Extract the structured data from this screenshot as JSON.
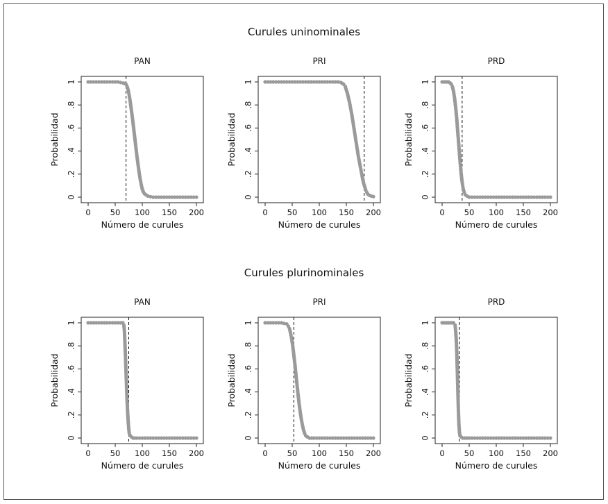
{
  "colors": {
    "marker": "#9a9a9a",
    "axis": "#222222",
    "cutoff_line": "#111111",
    "background": "#ffffff"
  },
  "sections": [
    {
      "id": "uninominal",
      "title": "Curules uninominales"
    },
    {
      "id": "plurinominal",
      "title": "Curules plurinominales"
    }
  ],
  "chart_data": [
    {
      "type": "scatter",
      "section": "Curules uninominales",
      "title": "PAN",
      "xlabel": "Número de curules",
      "ylabel": "Probabilidad",
      "xlim": [
        0,
        200
      ],
      "ylim": [
        0,
        1
      ],
      "xticks": [
        "0",
        "50",
        "100",
        "150",
        "200"
      ],
      "yticks": [
        "0",
        ".2",
        ".4",
        ".6",
        ".8",
        "1"
      ],
      "cutoff_x": 70,
      "points": [
        [
          0,
          1
        ],
        [
          5,
          1
        ],
        [
          10,
          1
        ],
        [
          15,
          1
        ],
        [
          20,
          1
        ],
        [
          25,
          1
        ],
        [
          30,
          1
        ],
        [
          35,
          1
        ],
        [
          40,
          1
        ],
        [
          45,
          1
        ],
        [
          50,
          1
        ],
        [
          55,
          1
        ],
        [
          60,
          0.995
        ],
        [
          65,
          0.99
        ],
        [
          68,
          0.985
        ],
        [
          70,
          0.98
        ],
        [
          72,
          0.96
        ],
        [
          74,
          0.93
        ],
        [
          76,
          0.88
        ],
        [
          78,
          0.82
        ],
        [
          80,
          0.75
        ],
        [
          82,
          0.68
        ],
        [
          84,
          0.6
        ],
        [
          86,
          0.52
        ],
        [
          88,
          0.44
        ],
        [
          90,
          0.36
        ],
        [
          92,
          0.29
        ],
        [
          94,
          0.22
        ],
        [
          96,
          0.16
        ],
        [
          98,
          0.11
        ],
        [
          100,
          0.07
        ],
        [
          102,
          0.045
        ],
        [
          104,
          0.03
        ],
        [
          107,
          0.02
        ],
        [
          110,
          0.01
        ],
        [
          115,
          0.005
        ],
        [
          120,
          0
        ],
        [
          125,
          0
        ],
        [
          130,
          0
        ],
        [
          135,
          0
        ],
        [
          140,
          0
        ],
        [
          145,
          0
        ],
        [
          150,
          0
        ],
        [
          155,
          0
        ],
        [
          160,
          0
        ],
        [
          165,
          0
        ],
        [
          170,
          0
        ],
        [
          175,
          0
        ],
        [
          180,
          0
        ],
        [
          185,
          0
        ],
        [
          190,
          0
        ],
        [
          195,
          0
        ],
        [
          200,
          0
        ]
      ]
    },
    {
      "type": "scatter",
      "section": "Curules uninominales",
      "title": "PRI",
      "xlabel": "Número de curules",
      "ylabel": "Probabilidad",
      "xlim": [
        0,
        200
      ],
      "ylim": [
        0,
        1
      ],
      "xticks": [
        "0",
        "50",
        "100",
        "150",
        "200"
      ],
      "yticks": [
        "0",
        ".2",
        ".4",
        ".6",
        ".8",
        "1"
      ],
      "cutoff_x": 183,
      "points": [
        [
          0,
          1
        ],
        [
          5,
          1
        ],
        [
          10,
          1
        ],
        [
          15,
          1
        ],
        [
          20,
          1
        ],
        [
          25,
          1
        ],
        [
          30,
          1
        ],
        [
          35,
          1
        ],
        [
          40,
          1
        ],
        [
          45,
          1
        ],
        [
          50,
          1
        ],
        [
          55,
          1
        ],
        [
          60,
          1
        ],
        [
          65,
          1
        ],
        [
          70,
          1
        ],
        [
          75,
          1
        ],
        [
          80,
          1
        ],
        [
          85,
          1
        ],
        [
          90,
          1
        ],
        [
          95,
          1
        ],
        [
          100,
          1
        ],
        [
          105,
          1
        ],
        [
          110,
          1
        ],
        [
          115,
          1
        ],
        [
          120,
          1
        ],
        [
          125,
          1
        ],
        [
          130,
          1
        ],
        [
          135,
          1
        ],
        [
          140,
          0.995
        ],
        [
          145,
          0.98
        ],
        [
          148,
          0.96
        ],
        [
          150,
          0.93
        ],
        [
          152,
          0.9
        ],
        [
          154,
          0.86
        ],
        [
          156,
          0.82
        ],
        [
          158,
          0.77
        ],
        [
          160,
          0.72
        ],
        [
          162,
          0.66
        ],
        [
          164,
          0.6
        ],
        [
          166,
          0.54
        ],
        [
          168,
          0.48
        ],
        [
          170,
          0.42
        ],
        [
          172,
          0.36
        ],
        [
          174,
          0.31
        ],
        [
          176,
          0.26
        ],
        [
          178,
          0.21
        ],
        [
          180,
          0.16
        ],
        [
          182,
          0.12
        ],
        [
          184,
          0.09
        ],
        [
          186,
          0.06
        ],
        [
          188,
          0.04
        ],
        [
          190,
          0.025
        ],
        [
          193,
          0.015
        ],
        [
          196,
          0.01
        ],
        [
          200,
          0.005
        ]
      ]
    },
    {
      "type": "scatter",
      "section": "Curules uninominales",
      "title": "PRD",
      "xlabel": "Número de curules",
      "ylabel": "Probabilidad",
      "xlim": [
        0,
        200
      ],
      "ylim": [
        0,
        1
      ],
      "xticks": [
        "0",
        "50",
        "100",
        "150",
        "200"
      ],
      "yticks": [
        "0",
        ".2",
        ".4",
        ".6",
        ".8",
        "1"
      ],
      "cutoff_x": 37,
      "points": [
        [
          0,
          1
        ],
        [
          3,
          1
        ],
        [
          6,
          1
        ],
        [
          9,
          1
        ],
        [
          12,
          1
        ],
        [
          15,
          0.99
        ],
        [
          17,
          0.98
        ],
        [
          19,
          0.96
        ],
        [
          21,
          0.92
        ],
        [
          23,
          0.86
        ],
        [
          25,
          0.78
        ],
        [
          27,
          0.68
        ],
        [
          29,
          0.56
        ],
        [
          31,
          0.44
        ],
        [
          33,
          0.32
        ],
        [
          35,
          0.21
        ],
        [
          37,
          0.13
        ],
        [
          39,
          0.07
        ],
        [
          41,
          0.04
        ],
        [
          43,
          0.02
        ],
        [
          46,
          0.01
        ],
        [
          50,
          0
        ],
        [
          55,
          0
        ],
        [
          60,
          0
        ],
        [
          65,
          0
        ],
        [
          70,
          0
        ],
        [
          75,
          0
        ],
        [
          80,
          0
        ],
        [
          85,
          0
        ],
        [
          90,
          0
        ],
        [
          95,
          0
        ],
        [
          100,
          0
        ],
        [
          105,
          0
        ],
        [
          110,
          0
        ],
        [
          115,
          0
        ],
        [
          120,
          0
        ],
        [
          125,
          0
        ],
        [
          130,
          0
        ],
        [
          135,
          0
        ],
        [
          140,
          0
        ],
        [
          145,
          0
        ],
        [
          150,
          0
        ],
        [
          155,
          0
        ],
        [
          160,
          0
        ],
        [
          165,
          0
        ],
        [
          170,
          0
        ],
        [
          175,
          0
        ],
        [
          180,
          0
        ],
        [
          185,
          0
        ],
        [
          190,
          0
        ],
        [
          195,
          0
        ],
        [
          200,
          0
        ]
      ]
    },
    {
      "type": "scatter",
      "section": "Curules plurinominales",
      "title": "PAN",
      "xlabel": "Número de curules",
      "ylabel": "Probabilidad",
      "xlim": [
        0,
        200
      ],
      "ylim": [
        0,
        1
      ],
      "xticks": [
        "0",
        "50",
        "100",
        "150",
        "200"
      ],
      "yticks": [
        "0",
        ".2",
        ".4",
        ".6",
        ".8",
        "1"
      ],
      "cutoff_x": 75,
      "points": [
        [
          0,
          1
        ],
        [
          5,
          1
        ],
        [
          10,
          1
        ],
        [
          15,
          1
        ],
        [
          20,
          1
        ],
        [
          25,
          1
        ],
        [
          30,
          1
        ],
        [
          35,
          1
        ],
        [
          40,
          1
        ],
        [
          45,
          1
        ],
        [
          50,
          1
        ],
        [
          55,
          1
        ],
        [
          60,
          1
        ],
        [
          64,
          1
        ],
        [
          66,
          0.98
        ],
        [
          67,
          0.93
        ],
        [
          68,
          0.82
        ],
        [
          69,
          0.7
        ],
        [
          70,
          0.57
        ],
        [
          71,
          0.44
        ],
        [
          72,
          0.32
        ],
        [
          73,
          0.22
        ],
        [
          74,
          0.14
        ],
        [
          75,
          0.08
        ],
        [
          76,
          0.04
        ],
        [
          78,
          0.02
        ],
        [
          80,
          0.01
        ],
        [
          83,
          0
        ],
        [
          86,
          0
        ],
        [
          90,
          0
        ],
        [
          95,
          0
        ],
        [
          100,
          0
        ],
        [
          105,
          0
        ],
        [
          110,
          0
        ],
        [
          115,
          0
        ],
        [
          120,
          0
        ],
        [
          125,
          0
        ],
        [
          130,
          0
        ],
        [
          135,
          0
        ],
        [
          140,
          0
        ],
        [
          145,
          0
        ],
        [
          150,
          0
        ],
        [
          155,
          0
        ],
        [
          160,
          0
        ],
        [
          165,
          0
        ],
        [
          170,
          0
        ],
        [
          175,
          0
        ],
        [
          180,
          0
        ],
        [
          185,
          0
        ],
        [
          190,
          0
        ],
        [
          195,
          0
        ],
        [
          200,
          0
        ]
      ]
    },
    {
      "type": "scatter",
      "section": "Curules plurinominales",
      "title": "PRI",
      "xlabel": "Número de curules",
      "ylabel": "Probabilidad",
      "xlim": [
        0,
        200
      ],
      "ylim": [
        0,
        1
      ],
      "xticks": [
        "0",
        "50",
        "100",
        "150",
        "200"
      ],
      "yticks": [
        "0",
        ".2",
        ".4",
        ".6",
        ".8",
        "1"
      ],
      "cutoff_x": 53,
      "points": [
        [
          0,
          1
        ],
        [
          5,
          1
        ],
        [
          10,
          1
        ],
        [
          15,
          1
        ],
        [
          20,
          1
        ],
        [
          25,
          1
        ],
        [
          30,
          1
        ],
        [
          35,
          0.995
        ],
        [
          40,
          0.99
        ],
        [
          43,
          0.97
        ],
        [
          45,
          0.95
        ],
        [
          47,
          0.91
        ],
        [
          49,
          0.86
        ],
        [
          51,
          0.8
        ],
        [
          53,
          0.72
        ],
        [
          55,
          0.64
        ],
        [
          57,
          0.55
        ],
        [
          59,
          0.46
        ],
        [
          61,
          0.37
        ],
        [
          63,
          0.29
        ],
        [
          65,
          0.22
        ],
        [
          67,
          0.16
        ],
        [
          69,
          0.11
        ],
        [
          71,
          0.07
        ],
        [
          73,
          0.04
        ],
        [
          75,
          0.02
        ],
        [
          78,
          0.01
        ],
        [
          82,
          0
        ],
        [
          86,
          0
        ],
        [
          90,
          0
        ],
        [
          95,
          0
        ],
        [
          100,
          0
        ],
        [
          105,
          0
        ],
        [
          110,
          0
        ],
        [
          115,
          0
        ],
        [
          120,
          0
        ],
        [
          125,
          0
        ],
        [
          130,
          0
        ],
        [
          135,
          0
        ],
        [
          140,
          0
        ],
        [
          145,
          0
        ],
        [
          150,
          0
        ],
        [
          155,
          0
        ],
        [
          160,
          0
        ],
        [
          165,
          0
        ],
        [
          170,
          0
        ],
        [
          175,
          0
        ],
        [
          180,
          0
        ],
        [
          185,
          0
        ],
        [
          190,
          0
        ],
        [
          195,
          0
        ],
        [
          200,
          0
        ]
      ]
    },
    {
      "type": "scatter",
      "section": "Curules plurinominales",
      "title": "PRD",
      "xlabel": "Número de curules",
      "ylabel": "Probabilidad",
      "xlim": [
        0,
        200
      ],
      "ylim": [
        0,
        1
      ],
      "xticks": [
        "0",
        "50",
        "100",
        "150",
        "200"
      ],
      "yticks": [
        "0",
        ".2",
        ".4",
        ".6",
        ".8",
        "1"
      ],
      "cutoff_x": 32,
      "points": [
        [
          0,
          1
        ],
        [
          3,
          1
        ],
        [
          6,
          1
        ],
        [
          9,
          1
        ],
        [
          12,
          1
        ],
        [
          15,
          1
        ],
        [
          18,
          1
        ],
        [
          21,
          1
        ],
        [
          24,
          0.98
        ],
        [
          25,
          0.93
        ],
        [
          26,
          0.86
        ],
        [
          27,
          0.76
        ],
        [
          28,
          0.6
        ],
        [
          29,
          0.42
        ],
        [
          30,
          0.25
        ],
        [
          31,
          0.12
        ],
        [
          32,
          0.05
        ],
        [
          33,
          0.02
        ],
        [
          35,
          0.01
        ],
        [
          38,
          0
        ],
        [
          42,
          0
        ],
        [
          46,
          0
        ],
        [
          50,
          0
        ],
        [
          55,
          0
        ],
        [
          60,
          0
        ],
        [
          65,
          0
        ],
        [
          70,
          0
        ],
        [
          75,
          0
        ],
        [
          80,
          0
        ],
        [
          85,
          0
        ],
        [
          90,
          0
        ],
        [
          95,
          0
        ],
        [
          100,
          0
        ],
        [
          105,
          0
        ],
        [
          110,
          0
        ],
        [
          115,
          0
        ],
        [
          120,
          0
        ],
        [
          125,
          0
        ],
        [
          130,
          0
        ],
        [
          135,
          0
        ],
        [
          140,
          0
        ],
        [
          145,
          0
        ],
        [
          150,
          0
        ],
        [
          155,
          0
        ],
        [
          160,
          0
        ],
        [
          165,
          0
        ],
        [
          170,
          0
        ],
        [
          175,
          0
        ],
        [
          180,
          0
        ],
        [
          185,
          0
        ],
        [
          190,
          0
        ],
        [
          195,
          0
        ],
        [
          200,
          0
        ]
      ]
    }
  ]
}
